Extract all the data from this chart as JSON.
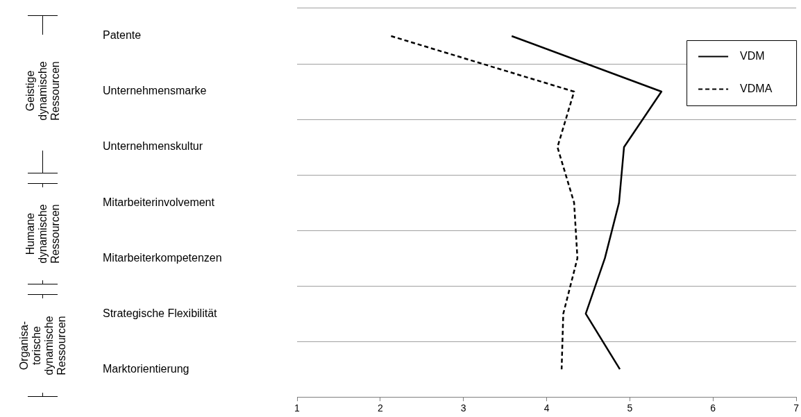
{
  "chart_data": {
    "type": "line",
    "orientation": "horizontal",
    "categories": [
      "Patente",
      "Unternehmensmarke",
      "Unternehmenskultur",
      "Mitarbeiterinvolvement",
      "Mitarbeiterkompetenzen",
      "Strategische Flexibilität",
      "Marktorientierung"
    ],
    "series": [
      {
        "name": "VDM",
        "color": "#000000",
        "line_style": "solid",
        "values": [
          3.58,
          5.38,
          4.93,
          4.87,
          4.7,
          4.47,
          4.88
        ]
      },
      {
        "name": "VDMA",
        "color": "#000000",
        "line_style": "dashed",
        "values": [
          2.13,
          4.33,
          4.13,
          4.33,
          4.37,
          4.2,
          4.18
        ]
      }
    ],
    "xlim": [
      1,
      7
    ],
    "xticks": [
      1,
      2,
      3,
      4,
      5,
      6,
      7
    ],
    "grid": "y",
    "legend": "top right",
    "marker": "none",
    "annotations": [
      "Geistige\ndynamische\nRessourcen",
      "Humane\ndynamische\nRessourcen",
      "Organisa-\ntorische\ndynamische\nRessourcen"
    ]
  }
}
